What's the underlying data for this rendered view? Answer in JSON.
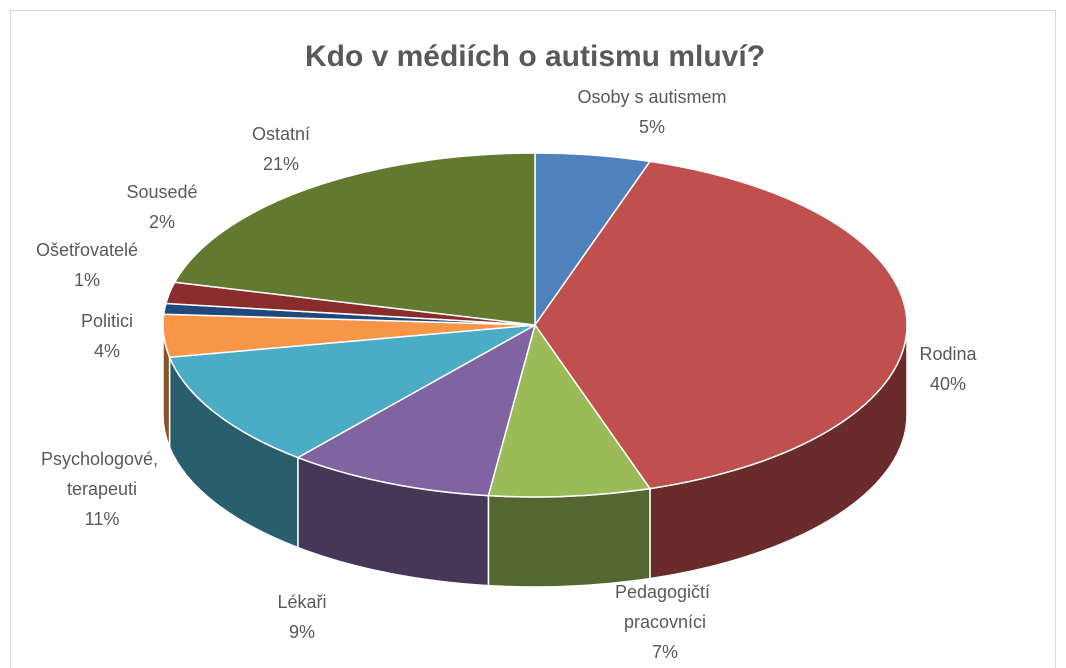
{
  "chart_data": {
    "type": "pie3d",
    "title": "Kdo v médiích o autismu mluví?",
    "categories": [
      "Osoby s autismem",
      "Rodina",
      "Pedagogičtí pracovníci",
      "Lékaři",
      "Psychologové, terapeuti",
      "Politici",
      "Ošetřovatelé",
      "Sousedé",
      "Ostatní"
    ],
    "values": [
      5,
      40,
      7,
      9,
      11,
      4,
      1,
      2,
      21
    ],
    "value_labels": [
      "5%",
      "40%",
      "7%",
      "9%",
      "11%",
      "4%",
      "1%",
      "2%",
      "21%"
    ],
    "colors": [
      "#4f81bd",
      "#c0504d",
      "#9bbb59",
      "#8064a2",
      "#4bacc6",
      "#f79646",
      "#1f497d",
      "#8b2c2c",
      "#617a2f"
    ]
  }
}
